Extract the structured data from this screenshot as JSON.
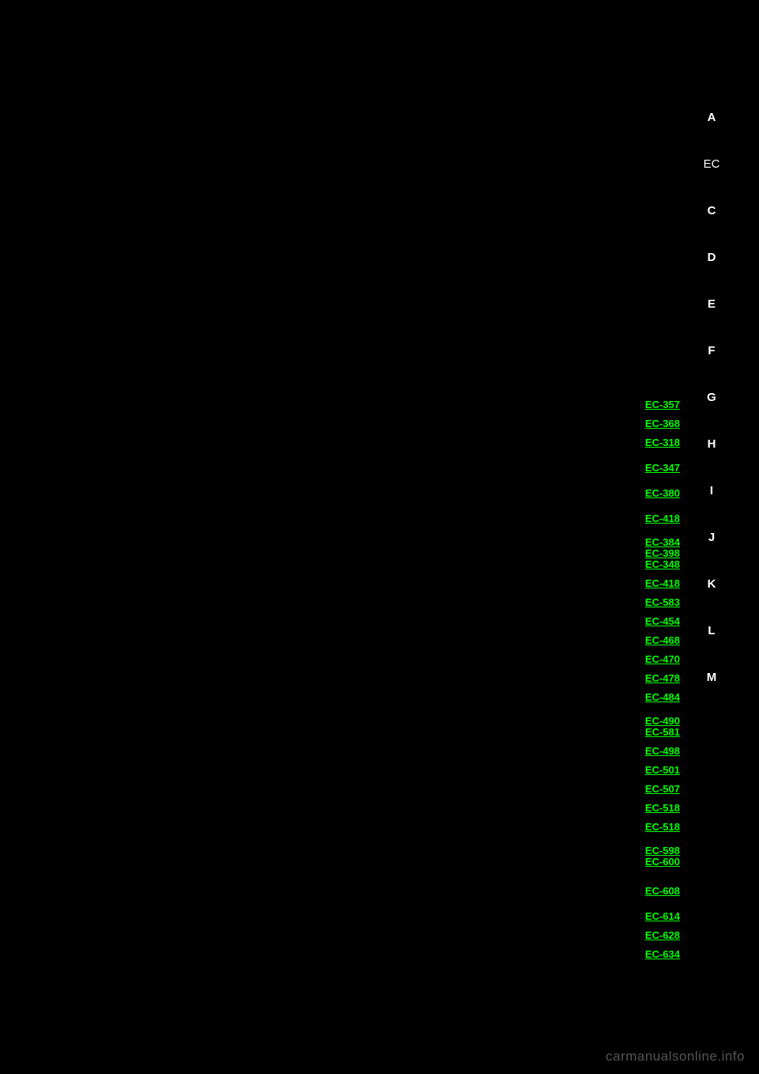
{
  "sideNav": {
    "items": [
      {
        "label": "A",
        "class": ""
      },
      {
        "label": "EC",
        "class": "ec"
      },
      {
        "label": "C",
        "class": ""
      },
      {
        "label": "D",
        "class": ""
      },
      {
        "label": "E",
        "class": ""
      },
      {
        "label": "F",
        "class": ""
      },
      {
        "label": "G",
        "class": ""
      },
      {
        "label": "H",
        "class": ""
      },
      {
        "label": "I",
        "class": ""
      },
      {
        "label": "J",
        "class": ""
      },
      {
        "label": "K",
        "class": ""
      },
      {
        "label": "L",
        "class": ""
      },
      {
        "label": "M",
        "class": ""
      }
    ]
  },
  "links": [
    {
      "text": "EC-357",
      "group": "single"
    },
    {
      "text": "EC-368",
      "group": "single"
    },
    {
      "text": "EC-318",
      "group": "single"
    },
    {
      "text": "EC-347",
      "group": "single-gap"
    },
    {
      "text": "EC-380",
      "group": "single-gap"
    },
    {
      "text": "EC-418",
      "group": "single-gap"
    },
    {
      "text": "EC-384",
      "group": "tight-top"
    },
    {
      "text": "EC-398",
      "group": "tight"
    },
    {
      "text": "EC-348",
      "group": "tight-bottom"
    },
    {
      "text": "EC-418",
      "group": "single"
    },
    {
      "text": "EC-583",
      "group": "single"
    },
    {
      "text": "EC-454",
      "group": "single"
    },
    {
      "text": "EC-468",
      "group": "single"
    },
    {
      "text": "EC-470",
      "group": "single"
    },
    {
      "text": "EC-478",
      "group": "single"
    },
    {
      "text": "EC-484",
      "group": "single"
    },
    {
      "text": "EC-490",
      "group": "tight-top"
    },
    {
      "text": "EC-581",
      "group": "tight-bottom"
    },
    {
      "text": "EC-498",
      "group": "single"
    },
    {
      "text": "EC-501",
      "group": "single"
    },
    {
      "text": "EC-507",
      "group": "single"
    },
    {
      "text": "EC-518",
      "group": "single"
    },
    {
      "text": "EC-518",
      "group": "single"
    },
    {
      "text": "EC-598",
      "group": "tight-top"
    },
    {
      "text": "EC-600",
      "group": "tight-bottom-gap"
    },
    {
      "text": "EC-608",
      "group": "single-gap"
    },
    {
      "text": "EC-614",
      "group": "single-gap"
    },
    {
      "text": "EC-628",
      "group": "single"
    },
    {
      "text": "EC-634",
      "group": "single"
    }
  ],
  "watermark": "carmanualsonline.info",
  "colors": {
    "background": "#000000",
    "link": "#00ff00",
    "nav_text": "#ffffff",
    "watermark": "#555555"
  }
}
